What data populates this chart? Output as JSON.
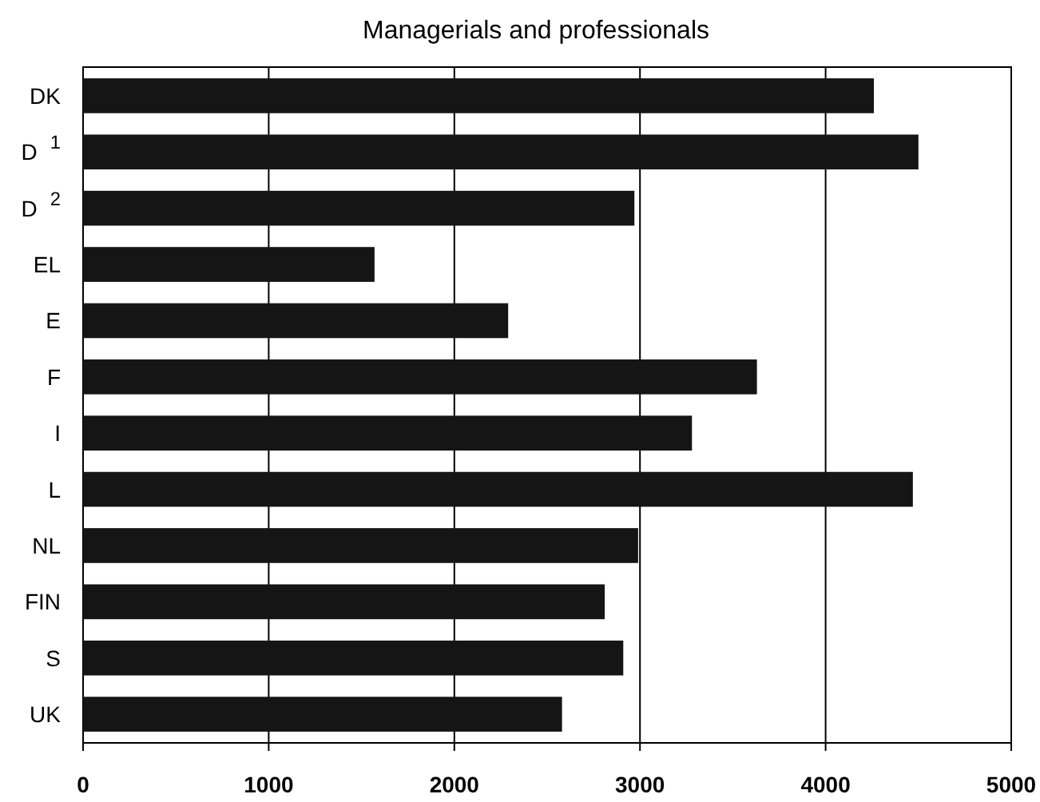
{
  "chart_data": {
    "type": "bar",
    "orientation": "horizontal",
    "title": "Managerials and professionals",
    "categories": [
      "DK",
      "D$^{1}$",
      "D$^{2}$",
      "EL",
      "E",
      "F",
      "I",
      "L",
      "NL",
      "FIN",
      "S",
      "UK"
    ],
    "values": [
      4260,
      4500,
      2970,
      1570,
      2290,
      3630,
      3280,
      4470,
      2990,
      2810,
      2910,
      2580
    ],
    "color": "#151515",
    "xlim": [
      0,
      5000
    ],
    "xticks": [
      0,
      1000,
      2000,
      3000,
      4000,
      5000
    ],
    "grid": "x"
  }
}
